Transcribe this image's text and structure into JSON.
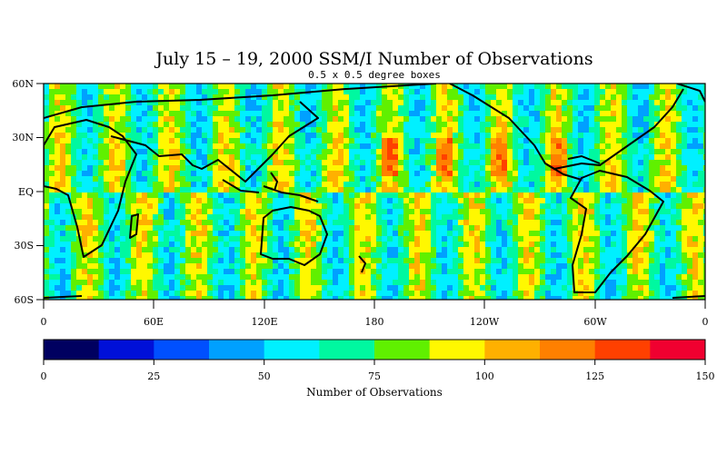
{
  "title": "July 15 – 19, 2000 SSM/I Number of Observations",
  "subtitle": "0.5 x 0.5 degree boxes",
  "map": {
    "lat_ticks": [
      "60N",
      "30N",
      "EQ",
      "30S",
      "60S"
    ],
    "lon_ticks": [
      "0",
      "60E",
      "120E",
      "180",
      "120W",
      "60W",
      "0"
    ],
    "lat_range": [
      -60,
      60
    ],
    "lon_range": [
      0,
      360
    ],
    "coastline_color": "#000000"
  },
  "colorbar": {
    "title": "Number of Observations",
    "tick_labels": [
      "0",
      "25",
      "50",
      "75",
      "100",
      "125",
      "150"
    ],
    "range": [
      0,
      150
    ],
    "colors": [
      "#000060",
      "#0010d8",
      "#0050ff",
      "#00a0ff",
      "#00f0ff",
      "#00f8a0",
      "#60f000",
      "#fff800",
      "#ffb000",
      "#ff8000",
      "#ff4000",
      "#f00030"
    ]
  }
}
